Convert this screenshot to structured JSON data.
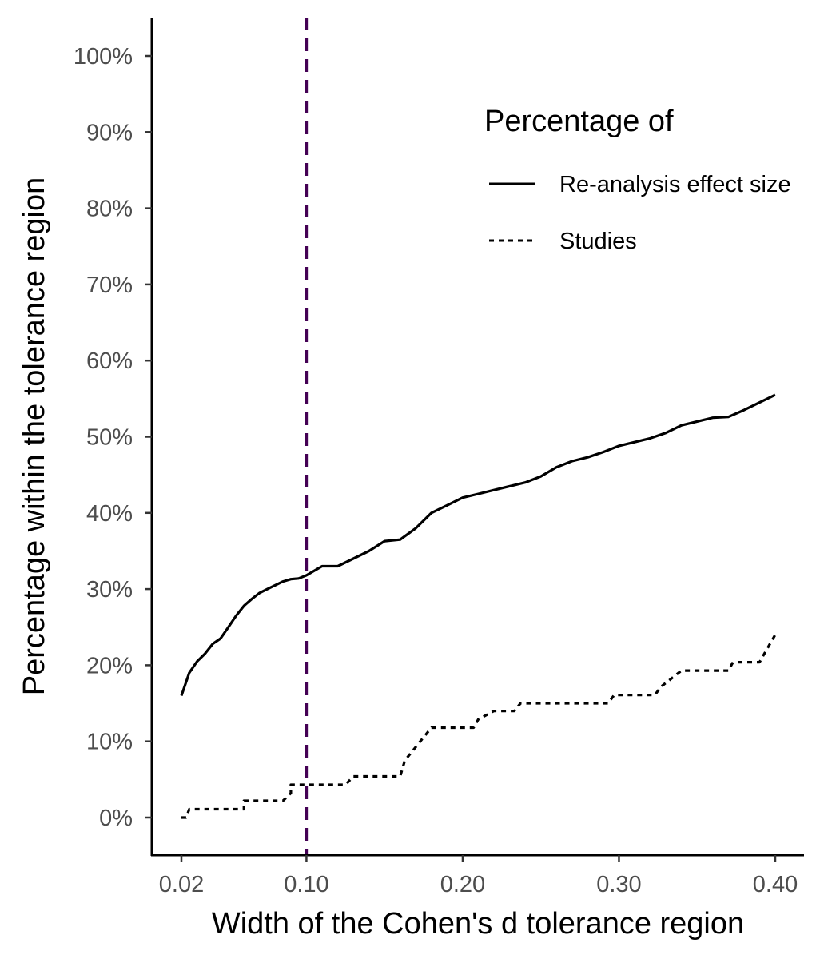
{
  "chart_data": {
    "type": "line",
    "xlabel": "Width of the Cohen's d tolerance region",
    "ylabel": "Percentage within the tolerance region",
    "xlim": [
      0.0,
      0.42
    ],
    "ylim": [
      -5,
      105
    ],
    "x_ticks": [
      0.02,
      0.1,
      0.2,
      0.3,
      0.4
    ],
    "x_tick_labels": [
      "0.02",
      "0.10",
      "0.20",
      "0.30",
      "0.40"
    ],
    "y_ticks": [
      0,
      10,
      20,
      30,
      40,
      50,
      60,
      70,
      80,
      90,
      100
    ],
    "y_tick_labels": [
      "0%",
      "10%",
      "20%",
      "30%",
      "40%",
      "50%",
      "60%",
      "70%",
      "80%",
      "90%",
      "100%"
    ],
    "grid": false,
    "reference_line": {
      "x": 0.1,
      "style": "dashed",
      "color": "#440154"
    },
    "legend": {
      "title": "Percentage of",
      "placement": "top-right",
      "entries": [
        "Re-analysis effect size",
        "Studies"
      ]
    },
    "series": [
      {
        "name": "Re-analysis effect size",
        "style": "solid",
        "color": "#000000",
        "x": [
          0.02,
          0.025,
          0.03,
          0.035,
          0.04,
          0.045,
          0.05,
          0.055,
          0.06,
          0.065,
          0.07,
          0.075,
          0.08,
          0.085,
          0.09,
          0.095,
          0.1,
          0.11,
          0.12,
          0.13,
          0.14,
          0.15,
          0.16,
          0.17,
          0.18,
          0.19,
          0.2,
          0.21,
          0.22,
          0.23,
          0.24,
          0.25,
          0.26,
          0.27,
          0.28,
          0.29,
          0.3,
          0.31,
          0.32,
          0.33,
          0.34,
          0.35,
          0.36,
          0.37,
          0.38,
          0.39,
          0.4
        ],
        "values": [
          16,
          19,
          20.5,
          21.5,
          22.8,
          23.5,
          25,
          26.5,
          27.8,
          28.7,
          29.5,
          30,
          30.5,
          31,
          31.3,
          31.4,
          31.8,
          33.0,
          33.0,
          34.0,
          35.0,
          36.3,
          36.5,
          38.0,
          40.0,
          41.0,
          42.0,
          42.5,
          43.0,
          43.5,
          44.0,
          44.8,
          46.0,
          46.8,
          47.3,
          48.0,
          48.8,
          49.3,
          49.8,
          50.5,
          51.5,
          52.0,
          52.5,
          52.6,
          53.5,
          54.5,
          55.5
        ]
      },
      {
        "name": "Studies",
        "style": "dotted",
        "color": "#000000",
        "x": [
          0.02,
          0.023,
          0.025,
          0.04,
          0.04,
          0.06,
          0.06,
          0.085,
          0.09,
          0.09,
          0.107,
          0.107,
          0.125,
          0.13,
          0.16,
          0.163,
          0.18,
          0.185,
          0.207,
          0.21,
          0.22,
          0.233,
          0.237,
          0.293,
          0.297,
          0.323,
          0.327,
          0.34,
          0.343,
          0.37,
          0.373,
          0.39,
          0.393,
          0.4
        ],
        "values": [
          0,
          0,
          1.1,
          1.1,
          1.1,
          1.1,
          2.2,
          2.2,
          3.2,
          4.3,
          4.3,
          4.3,
          4.3,
          5.4,
          5.4,
          7.5,
          11.8,
          11.8,
          11.8,
          12.9,
          14.0,
          14.0,
          15.0,
          15.0,
          16.1,
          16.1,
          17.2,
          19.3,
          19.3,
          19.3,
          20.4,
          20.4,
          21.5,
          24.0
        ]
      }
    ]
  }
}
